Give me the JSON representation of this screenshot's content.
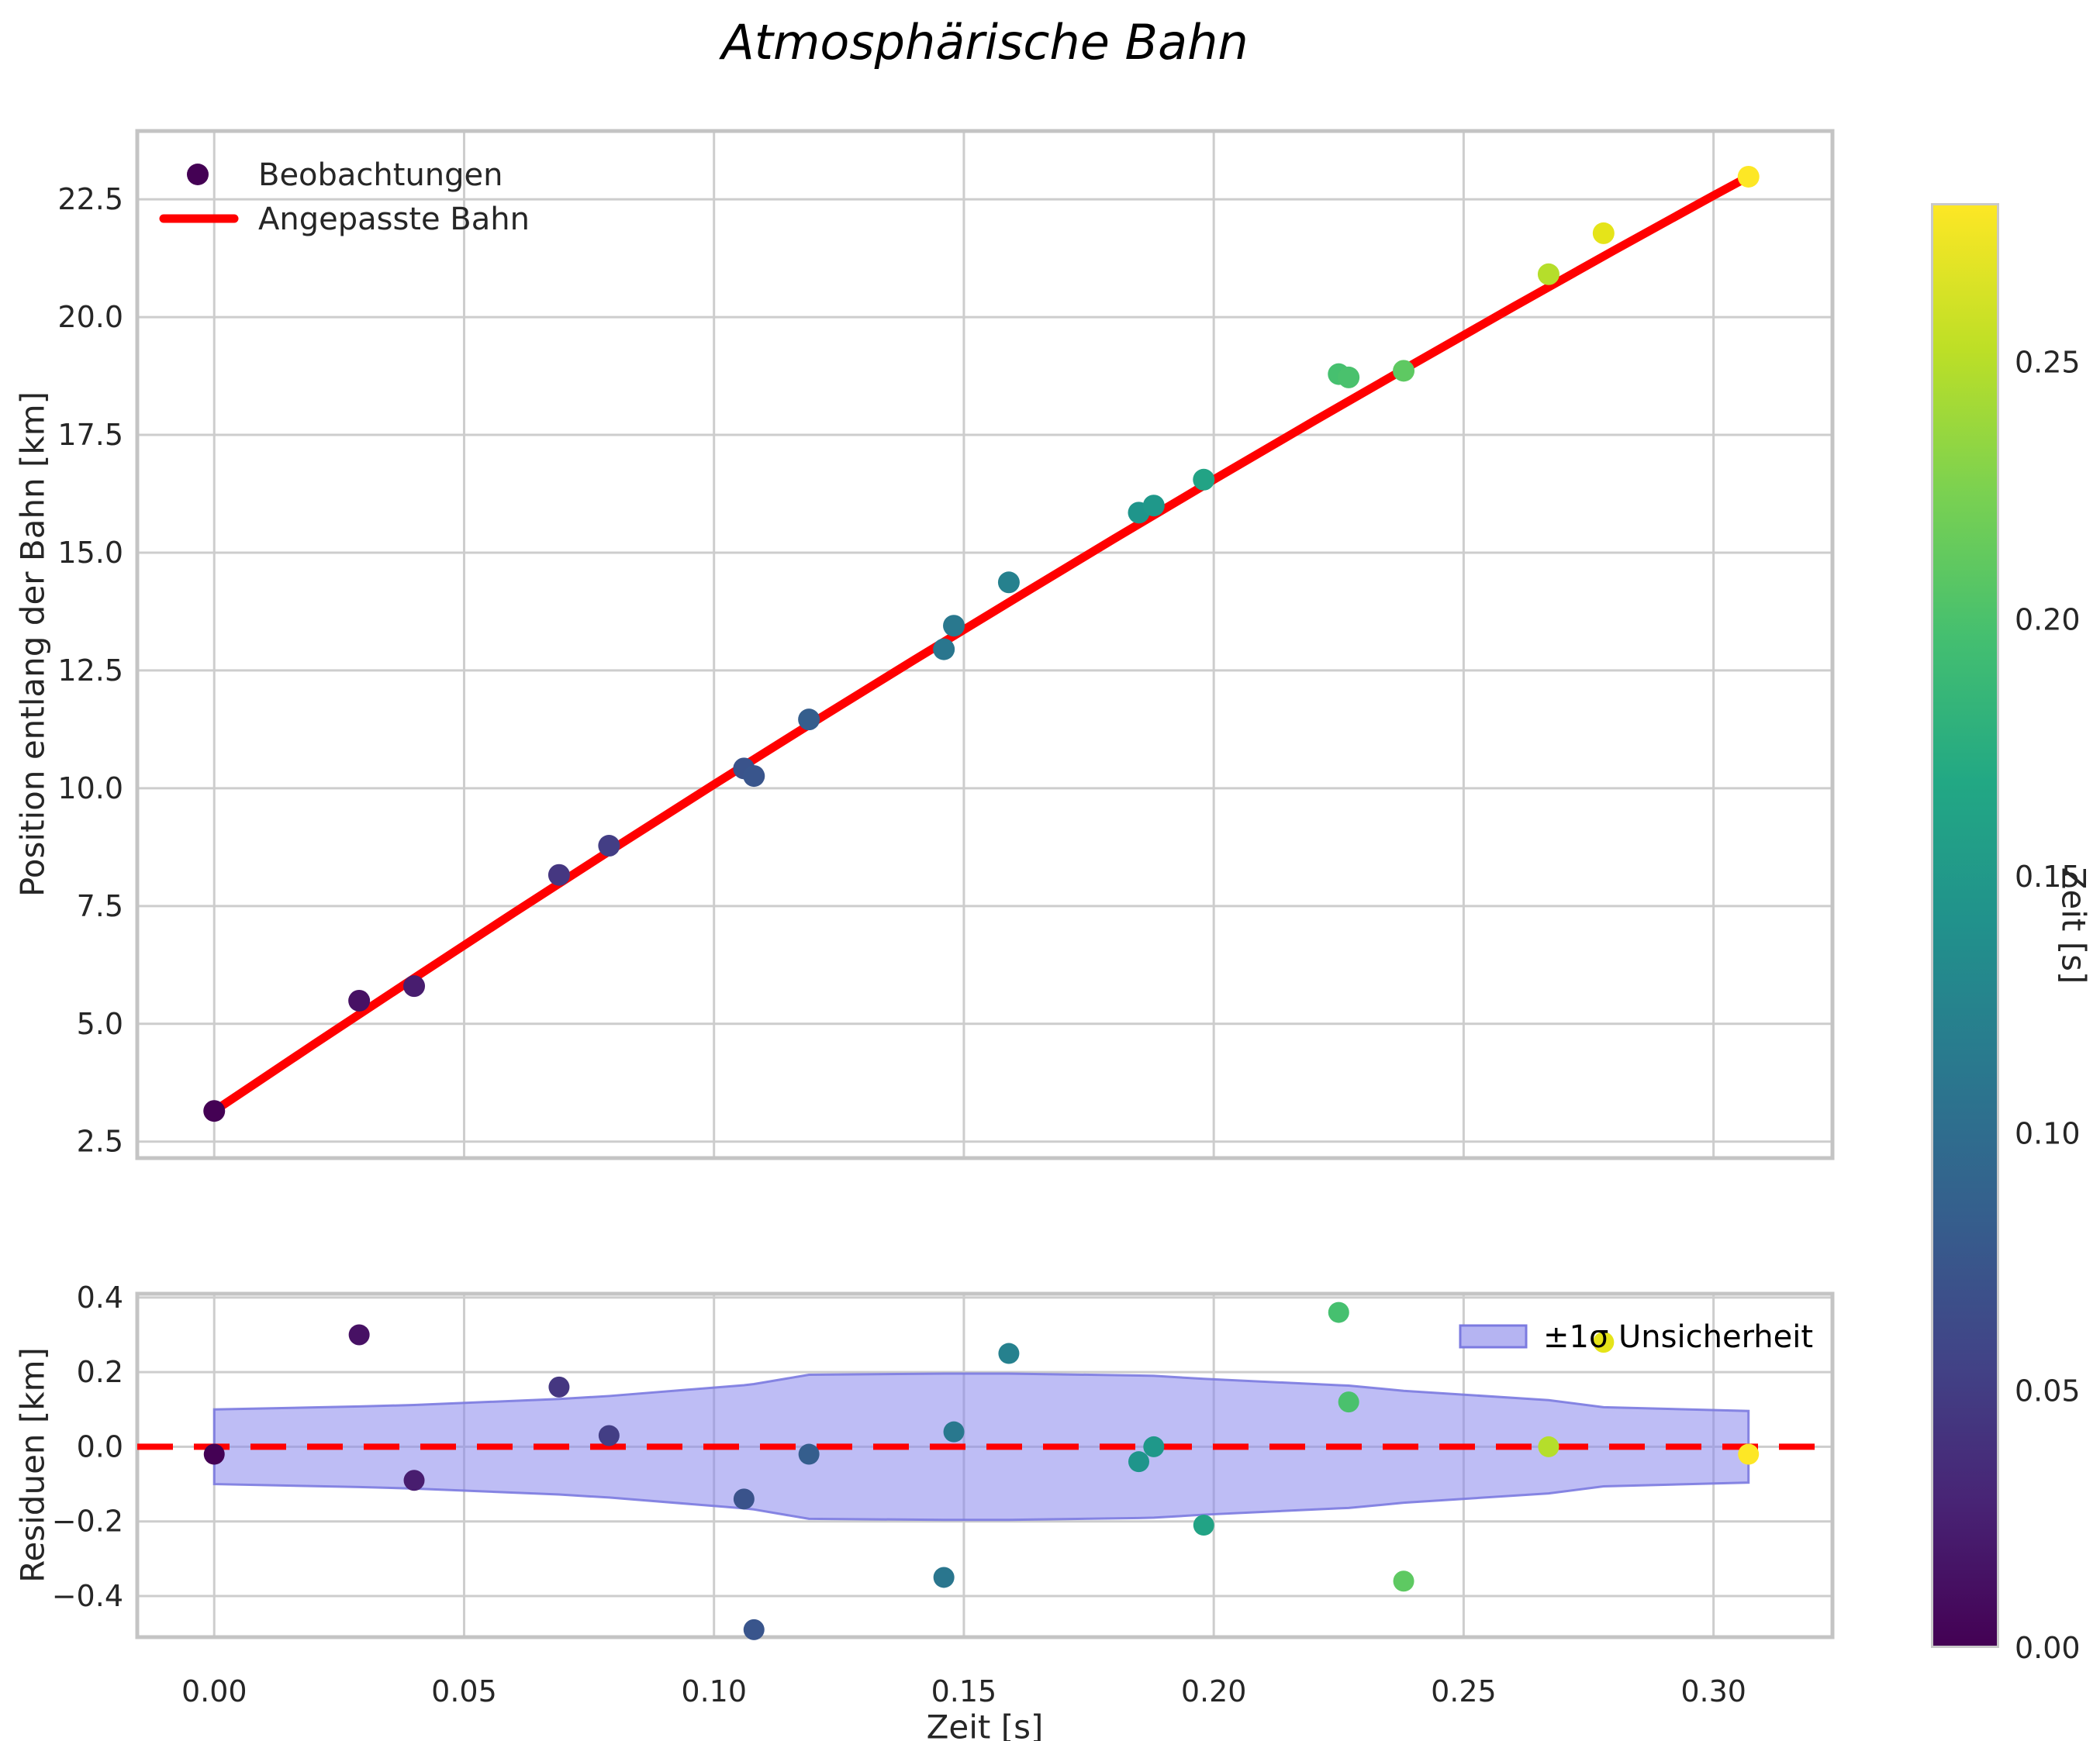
{
  "figure": {
    "title": "Atmosphärische Bahn",
    "background": "#ffffff"
  },
  "top_plot": {
    "ylabel": "Position entlang der Bahn [km]",
    "yticks": {
      "values": [
        2.5,
        5.0,
        7.5,
        10.0,
        12.5,
        15.0,
        17.5,
        20.0,
        22.5
      ],
      "labels": [
        "2.5",
        "5.0",
        "7.5",
        "10.0",
        "12.5",
        "15.0",
        "17.5",
        "20.0",
        "22.5"
      ]
    },
    "legend": [
      {
        "label": "Beobachtungen",
        "type": "dot",
        "color": "#440154"
      },
      {
        "label": "Angepasste Bahn",
        "type": "line",
        "color": "#ff0000"
      }
    ]
  },
  "residual_plot": {
    "ylabel": "Residuen [km]",
    "xlabel": "Zeit [s]",
    "xticks": {
      "values": [
        0.0,
        0.05,
        0.1,
        0.15,
        0.2,
        0.25,
        0.3
      ],
      "labels": [
        "0.00",
        "0.05",
        "0.10",
        "0.15",
        "0.20",
        "0.25",
        "0.30"
      ]
    },
    "yticks": {
      "values": [
        0.4,
        0.2,
        0.0,
        -0.2,
        -0.4
      ],
      "labels": [
        "0.4",
        "0.2",
        "0.0",
        "−0.2",
        "−0.4"
      ]
    },
    "legend": {
      "label": "±1σ Unsicherheit",
      "fill": "#b5b4f2",
      "edge": "#7b7ae0"
    },
    "zero_line_color": "#ff0000"
  },
  "colorbar": {
    "label": "Zeit [s]",
    "vmin": 0.0,
    "vmax": 0.281,
    "tick_values": [
      0.0,
      0.05,
      0.1,
      0.15,
      0.2,
      0.25
    ],
    "tick_labels": [
      "0.00",
      "0.05",
      "0.10",
      "0.15",
      "0.20",
      "0.25"
    ],
    "colormap": "viridis",
    "stops": [
      [
        0,
        "#440154"
      ],
      [
        0.1,
        "#482475"
      ],
      [
        0.2,
        "#414487"
      ],
      [
        0.3,
        "#355f8d"
      ],
      [
        0.4,
        "#2a788e"
      ],
      [
        0.5,
        "#21918c"
      ],
      [
        0.6,
        "#22a884"
      ],
      [
        0.7,
        "#44bf70"
      ],
      [
        0.8,
        "#7ad151"
      ],
      [
        0.9,
        "#bddf26"
      ],
      [
        1,
        "#fde725"
      ]
    ]
  },
  "chart_data": [
    {
      "type": "scatter",
      "title": "Atmosphärische Bahn",
      "xlabel": "Zeit [s]",
      "ylabel": "Position entlang der Bahn [km]",
      "xlim": [
        -0.0154,
        0.3238
      ],
      "ylim": [
        2.15,
        23.95
      ],
      "grid": true,
      "legend_position": "upper left",
      "series": [
        {
          "name": "Beobachtungen",
          "kind": "scatter",
          "color_by": "Zeit [s]",
          "x": [
            0.0,
            0.029,
            0.04,
            0.069,
            0.079,
            0.106,
            0.108,
            0.119,
            0.146,
            0.148,
            0.159,
            0.185,
            0.188,
            0.198,
            0.225,
            0.227,
            0.238,
            0.267,
            0.278,
            0.307
          ],
          "y": [
            3.15,
            5.49,
            5.8,
            8.16,
            8.78,
            10.42,
            10.26,
            11.46,
            12.95,
            13.45,
            14.37,
            15.85,
            16.0,
            16.55,
            18.79,
            18.72,
            18.86,
            20.91,
            21.78,
            22.98
          ],
          "colors": [
            "#440154",
            "#471164",
            "#481d6f",
            "#453781",
            "#433e85",
            "#3a538b",
            "#39558c",
            "#355e8d",
            "#2a768e",
            "#29788e",
            "#26818e",
            "#1f958b",
            "#1f988a",
            "#22a385",
            "#46c06f",
            "#4ac16d",
            "#5ec962",
            "#b5de2b",
            "#e5e419",
            "#fde725"
          ]
        },
        {
          "name": "Angepasste Bahn",
          "kind": "line",
          "color": "#ff0000",
          "x": [
            0.0,
            0.02,
            0.04,
            0.06,
            0.08,
            0.1,
            0.12,
            0.14,
            0.16,
            0.18,
            0.2,
            0.22,
            0.24,
            0.26,
            0.28,
            0.3,
            0.307
          ],
          "y": [
            3.15,
            4.57,
            5.97,
            7.36,
            8.73,
            10.08,
            11.41,
            12.72,
            14.01,
            15.29,
            16.55,
            17.79,
            19.01,
            20.22,
            21.41,
            22.58,
            22.98
          ]
        }
      ]
    },
    {
      "type": "scatter",
      "xlabel": "Zeit [s]",
      "ylabel": "Residuen [km]",
      "xlim": [
        -0.0154,
        0.3238
      ],
      "ylim": [
        -0.51,
        0.41
      ],
      "grid": true,
      "legend_position": "upper right",
      "zero_line": 0.0,
      "series": [
        {
          "name": "Residuen",
          "kind": "scatter",
          "color_by": "Zeit [s]",
          "x": [
            0.0,
            0.029,
            0.04,
            0.069,
            0.079,
            0.106,
            0.108,
            0.119,
            0.146,
            0.148,
            0.159,
            0.185,
            0.188,
            0.198,
            0.225,
            0.227,
            0.238,
            0.267,
            0.278,
            0.307
          ],
          "y": [
            -0.02,
            0.3,
            -0.09,
            0.16,
            0.03,
            -0.14,
            -0.49,
            -0.02,
            -0.35,
            0.04,
            0.25,
            -0.04,
            0.0,
            -0.21,
            0.36,
            0.12,
            -0.36,
            0.0,
            0.28,
            -0.02
          ],
          "colors": [
            "#440154",
            "#471164",
            "#481d6f",
            "#453781",
            "#433e85",
            "#3a538b",
            "#39558c",
            "#355e8d",
            "#2a768e",
            "#29788e",
            "#26818e",
            "#1f958b",
            "#1f988a",
            "#22a385",
            "#46c06f",
            "#4ac16d",
            "#5ec962",
            "#b5de2b",
            "#e5e419",
            "#fde725"
          ]
        },
        {
          "name": "±1σ Unsicherheit",
          "kind": "band",
          "fill": "#8886ec",
          "edge": "#7b7ae0",
          "x": [
            0.0,
            0.029,
            0.04,
            0.069,
            0.079,
            0.106,
            0.108,
            0.119,
            0.146,
            0.148,
            0.159,
            0.185,
            0.188,
            0.198,
            0.225,
            0.227,
            0.238,
            0.267,
            0.278,
            0.307
          ],
          "upper": [
            0.1,
            0.108,
            0.112,
            0.128,
            0.136,
            0.165,
            0.168,
            0.193,
            0.196,
            0.196,
            0.196,
            0.191,
            0.19,
            0.182,
            0.165,
            0.164,
            0.15,
            0.125,
            0.106,
            0.096
          ],
          "lower": [
            -0.1,
            -0.108,
            -0.112,
            -0.128,
            -0.136,
            -0.165,
            -0.168,
            -0.193,
            -0.196,
            -0.196,
            -0.196,
            -0.191,
            -0.19,
            -0.182,
            -0.165,
            -0.164,
            -0.15,
            -0.125,
            -0.106,
            -0.096
          ]
        }
      ]
    }
  ]
}
